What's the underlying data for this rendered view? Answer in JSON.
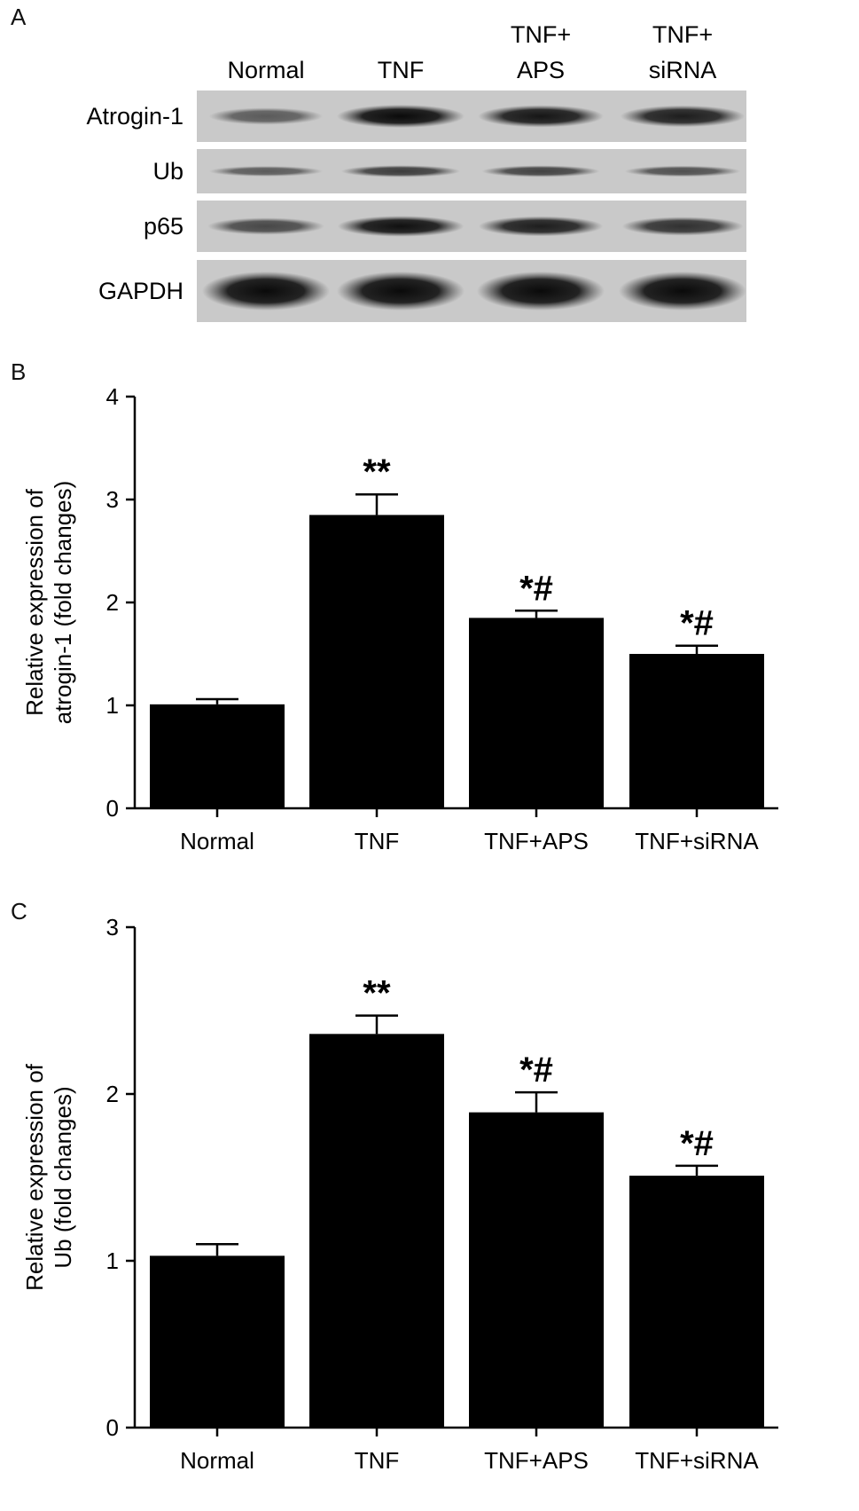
{
  "panels": {
    "a": "A",
    "b": "B",
    "c": "C"
  },
  "blot": {
    "lanes": [
      {
        "line1": "",
        "line2": "Normal"
      },
      {
        "line1": "",
        "line2": "TNF"
      },
      {
        "line1": "TNF+",
        "line2": "APS"
      },
      {
        "line1": "TNF+",
        "line2": "siRNA"
      }
    ],
    "strips": [
      {
        "label": "Atrogin-1",
        "intensity": [
          0.35,
          1.0,
          0.9,
          0.85
        ]
      },
      {
        "label": "Ub",
        "intensity": [
          0.35,
          0.6,
          0.55,
          0.45
        ]
      },
      {
        "label": "p65",
        "intensity": [
          0.5,
          0.95,
          0.85,
          0.7
        ]
      },
      {
        "label": "GAPDH",
        "intensity": [
          1.0,
          1.0,
          1.0,
          1.0
        ]
      }
    ]
  },
  "chart_data": [
    {
      "type": "bar",
      "categories": [
        "Normal",
        "TNF",
        "TNF+APS",
        "TNF+siRNA"
      ],
      "values": [
        1.01,
        2.85,
        1.85,
        1.5
      ],
      "errors": [
        0.05,
        0.2,
        0.07,
        0.08
      ],
      "annotations": [
        "",
        "**",
        "*#",
        "*#"
      ],
      "ylabel_lines": [
        "Relative expression of",
        "atrogin-1 (fold changes)"
      ],
      "yticks": [
        0,
        1,
        2,
        3,
        4
      ],
      "ylim": [
        0,
        4
      ],
      "bar_color": "#000000",
      "grid": false
    },
    {
      "type": "bar",
      "categories": [
        "Normal",
        "TNF",
        "TNF+APS",
        "TNF+siRNA"
      ],
      "values": [
        1.03,
        2.36,
        1.89,
        1.51
      ],
      "errors": [
        0.07,
        0.11,
        0.12,
        0.06
      ],
      "annotations": [
        "",
        "**",
        "*#",
        "*#"
      ],
      "ylabel_lines": [
        "Relative expression of",
        "Ub (fold changes)"
      ],
      "yticks": [
        0,
        1,
        2,
        3
      ],
      "ylim": [
        0,
        3
      ],
      "bar_color": "#000000",
      "grid": false
    }
  ]
}
